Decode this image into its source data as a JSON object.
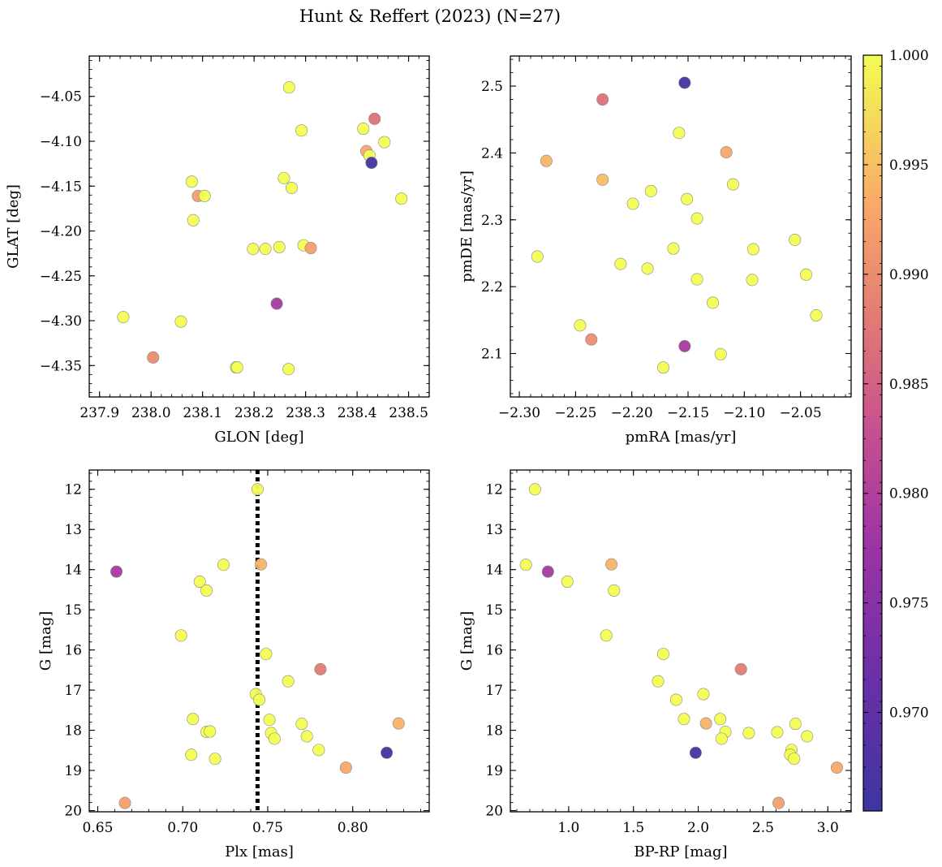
{
  "figure": {
    "title": "Hunt & Reffert (2023) (N=27)"
  },
  "colorbar": {
    "range": [
      0.9655,
      1.0
    ],
    "ticks": [
      0.97,
      0.975,
      0.98,
      0.985,
      0.99,
      0.995,
      1.0
    ],
    "tick_labels": [
      "0.970",
      "0.975",
      "0.980",
      "0.985",
      "0.990",
      "0.995",
      "1.000"
    ],
    "colormap": "plasma"
  },
  "vline": {
    "x": 0.744,
    "panel": "plx-g",
    "style": "dotted",
    "color": "#000000"
  },
  "chart_data": [
    {
      "id": "glon-glat",
      "type": "scatter",
      "xlabel": "GLON [deg]",
      "ylabel": "GLAT [deg]",
      "xlim": [
        237.88,
        238.54
      ],
      "ylim": [
        -4.385,
        -4.005
      ],
      "invert_y": false,
      "xticks": [
        237.9,
        238.0,
        238.1,
        238.2,
        238.3,
        238.4,
        238.5
      ],
      "xtick_labels": [
        "237.9",
        "238.0",
        "238.1",
        "238.2",
        "238.3",
        "238.4",
        "238.5"
      ],
      "yticks": [
        -4.05,
        -4.1,
        -4.15,
        -4.2,
        -4.25,
        -4.3,
        -4.35
      ],
      "ytick_labels": [
        "−4.05",
        "−4.10",
        "−4.15",
        "−4.20",
        "−4.25",
        "−4.30",
        "−4.35"
      ],
      "points": [
        {
          "x": 238.268,
          "y": -4.04,
          "c": 1.0
        },
        {
          "x": 238.434,
          "y": -4.075,
          "c": 0.987
        },
        {
          "x": 238.412,
          "y": -4.086,
          "c": 1.0
        },
        {
          "x": 238.292,
          "y": -4.088,
          "c": 1.0
        },
        {
          "x": 238.453,
          "y": -4.101,
          "c": 1.0
        },
        {
          "x": 238.418,
          "y": -4.111,
          "c": 0.993
        },
        {
          "x": 238.424,
          "y": -4.116,
          "c": 1.0
        },
        {
          "x": 238.428,
          "y": -4.124,
          "c": 0.966
        },
        {
          "x": 238.258,
          "y": -4.141,
          "c": 1.0
        },
        {
          "x": 238.079,
          "y": -4.145,
          "c": 1.0
        },
        {
          "x": 238.273,
          "y": -4.152,
          "c": 1.0
        },
        {
          "x": 238.091,
          "y": -4.161,
          "c": 0.992
        },
        {
          "x": 238.104,
          "y": -4.161,
          "c": 1.0
        },
        {
          "x": 238.486,
          "y": -4.164,
          "c": 1.0
        },
        {
          "x": 238.082,
          "y": -4.188,
          "c": 1.0
        },
        {
          "x": 238.198,
          "y": -4.22,
          "c": 1.0
        },
        {
          "x": 238.222,
          "y": -4.22,
          "c": 1.0
        },
        {
          "x": 238.249,
          "y": -4.218,
          "c": 1.0
        },
        {
          "x": 238.296,
          "y": -4.216,
          "c": 1.0
        },
        {
          "x": 238.31,
          "y": -4.219,
          "c": 0.992
        },
        {
          "x": 238.244,
          "y": -4.281,
          "c": 0.979
        },
        {
          "x": 237.946,
          "y": -4.296,
          "c": 1.0
        },
        {
          "x": 238.058,
          "y": -4.301,
          "c": 1.0
        },
        {
          "x": 238.004,
          "y": -4.341,
          "c": 0.99
        },
        {
          "x": 238.165,
          "y": -4.352,
          "c": 1.0
        },
        {
          "x": 238.167,
          "y": -4.352,
          "c": 1.0
        },
        {
          "x": 238.267,
          "y": -4.354,
          "c": 1.0
        }
      ]
    },
    {
      "id": "pmra-pmde",
      "type": "scatter",
      "xlabel": "pmRA [mas/yr]",
      "ylabel": "pmDE [mas/yr]",
      "xlim": [
        -2.308,
        -2.005
      ],
      "ylim": [
        2.035,
        2.545
      ],
      "invert_y": false,
      "xticks": [
        -2.3,
        -2.25,
        -2.2,
        -2.15,
        -2.1,
        -2.05
      ],
      "xtick_labels": [
        "−2.30",
        "−2.25",
        "−2.20",
        "−2.15",
        "−2.10",
        "−2.05"
      ],
      "yticks": [
        2.1,
        2.2,
        2.3,
        2.4,
        2.5
      ],
      "ytick_labels": [
        "2.1",
        "2.2",
        "2.3",
        "2.4",
        "2.5"
      ],
      "points": [
        {
          "x": -2.153,
          "y": 2.505,
          "c": 0.966
        },
        {
          "x": -2.226,
          "y": 2.48,
          "c": 0.987
        },
        {
          "x": -2.158,
          "y": 2.43,
          "c": 1.0
        },
        {
          "x": -2.116,
          "y": 2.401,
          "c": 0.993
        },
        {
          "x": -2.276,
          "y": 2.388,
          "c": 0.994
        },
        {
          "x": -2.226,
          "y": 2.36,
          "c": 0.995
        },
        {
          "x": -2.11,
          "y": 2.353,
          "c": 1.0
        },
        {
          "x": -2.183,
          "y": 2.343,
          "c": 1.0
        },
        {
          "x": -2.151,
          "y": 2.331,
          "c": 1.0
        },
        {
          "x": -2.199,
          "y": 2.324,
          "c": 1.0
        },
        {
          "x": -2.142,
          "y": 2.302,
          "c": 1.0
        },
        {
          "x": -2.055,
          "y": 2.27,
          "c": 1.0
        },
        {
          "x": -2.163,
          "y": 2.257,
          "c": 1.0
        },
        {
          "x": -2.092,
          "y": 2.256,
          "c": 1.0
        },
        {
          "x": -2.284,
          "y": 2.245,
          "c": 1.0
        },
        {
          "x": -2.21,
          "y": 2.234,
          "c": 1.0
        },
        {
          "x": -2.186,
          "y": 2.227,
          "c": 1.0
        },
        {
          "x": -2.045,
          "y": 2.218,
          "c": 1.0
        },
        {
          "x": -2.142,
          "y": 2.211,
          "c": 1.0
        },
        {
          "x": -2.093,
          "y": 2.21,
          "c": 1.0
        },
        {
          "x": -2.128,
          "y": 2.176,
          "c": 1.0
        },
        {
          "x": -2.036,
          "y": 2.157,
          "c": 1.0
        },
        {
          "x": -2.246,
          "y": 2.142,
          "c": 1.0
        },
        {
          "x": -2.236,
          "y": 2.121,
          "c": 0.99
        },
        {
          "x": -2.153,
          "y": 2.111,
          "c": 0.979
        },
        {
          "x": -2.121,
          "y": 2.099,
          "c": 1.0
        },
        {
          "x": -2.172,
          "y": 2.079,
          "c": 1.0
        }
      ]
    },
    {
      "id": "plx-g",
      "type": "scatter",
      "xlabel": "Plx [mas]",
      "ylabel": "G [mag]",
      "xlim": [
        0.645,
        0.845
      ],
      "ylim": [
        20.03,
        11.52
      ],
      "invert_y": true,
      "xticks": [
        0.65,
        0.7,
        0.75,
        0.8
      ],
      "xtick_labels": [
        "0.65",
        "0.70",
        "0.75",
        "0.80"
      ],
      "yticks": [
        12,
        13,
        14,
        15,
        16,
        17,
        18,
        19,
        20
      ],
      "ytick_labels": [
        "12",
        "13",
        "14",
        "15",
        "16",
        "17",
        "18",
        "19",
        "20"
      ],
      "points": [
        {
          "x": 0.744,
          "y": 12.0,
          "c": 1.0
        },
        {
          "x": 0.724,
          "y": 13.88,
          "c": 1.0
        },
        {
          "x": 0.746,
          "y": 13.87,
          "c": 0.994
        },
        {
          "x": 0.661,
          "y": 14.05,
          "c": 0.979
        },
        {
          "x": 0.71,
          "y": 14.3,
          "c": 1.0
        },
        {
          "x": 0.714,
          "y": 14.52,
          "c": 1.0
        },
        {
          "x": 0.699,
          "y": 15.64,
          "c": 1.0
        },
        {
          "x": 0.749,
          "y": 16.1,
          "c": 1.0
        },
        {
          "x": 0.781,
          "y": 16.48,
          "c": 0.988
        },
        {
          "x": 0.762,
          "y": 16.78,
          "c": 1.0
        },
        {
          "x": 0.743,
          "y": 17.1,
          "c": 1.0
        },
        {
          "x": 0.745,
          "y": 17.24,
          "c": 1.0
        },
        {
          "x": 0.706,
          "y": 17.72,
          "c": 1.0
        },
        {
          "x": 0.751,
          "y": 17.74,
          "c": 1.0
        },
        {
          "x": 0.77,
          "y": 17.84,
          "c": 1.0
        },
        {
          "x": 0.827,
          "y": 17.83,
          "c": 0.994
        },
        {
          "x": 0.714,
          "y": 18.04,
          "c": 1.0
        },
        {
          "x": 0.716,
          "y": 18.03,
          "c": 1.0
        },
        {
          "x": 0.752,
          "y": 18.07,
          "c": 1.0
        },
        {
          "x": 0.754,
          "y": 18.21,
          "c": 1.0
        },
        {
          "x": 0.773,
          "y": 18.15,
          "c": 1.0
        },
        {
          "x": 0.78,
          "y": 18.49,
          "c": 1.0
        },
        {
          "x": 0.82,
          "y": 18.56,
          "c": 0.966
        },
        {
          "x": 0.705,
          "y": 18.61,
          "c": 1.0
        },
        {
          "x": 0.719,
          "y": 18.71,
          "c": 1.0
        },
        {
          "x": 0.796,
          "y": 18.93,
          "c": 0.993
        },
        {
          "x": 0.666,
          "y": 19.81,
          "c": 0.992
        }
      ]
    },
    {
      "id": "bprp-g",
      "type": "scatter",
      "xlabel": "BP-RP [mag]",
      "ylabel": "G [mag]",
      "xlim": [
        0.55,
        3.18
      ],
      "ylim": [
        20.03,
        11.52
      ],
      "invert_y": true,
      "xticks": [
        1.0,
        1.5,
        2.0,
        2.5,
        3.0
      ],
      "xtick_labels": [
        "1.0",
        "1.5",
        "2.0",
        "2.5",
        "3.0"
      ],
      "yticks": [
        12,
        13,
        14,
        15,
        16,
        17,
        18,
        19,
        20
      ],
      "ytick_labels": [
        "12",
        "13",
        "14",
        "15",
        "16",
        "17",
        "18",
        "19",
        "20"
      ],
      "points": [
        {
          "x": 0.74,
          "y": 12.0,
          "c": 1.0
        },
        {
          "x": 0.67,
          "y": 13.88,
          "c": 1.0
        },
        {
          "x": 1.33,
          "y": 13.87,
          "c": 0.994
        },
        {
          "x": 0.84,
          "y": 14.05,
          "c": 0.979
        },
        {
          "x": 0.99,
          "y": 14.3,
          "c": 1.0
        },
        {
          "x": 1.35,
          "y": 14.52,
          "c": 1.0
        },
        {
          "x": 1.29,
          "y": 15.64,
          "c": 1.0
        },
        {
          "x": 1.73,
          "y": 16.1,
          "c": 1.0
        },
        {
          "x": 2.33,
          "y": 16.48,
          "c": 0.988
        },
        {
          "x": 1.69,
          "y": 16.78,
          "c": 1.0
        },
        {
          "x": 2.04,
          "y": 17.1,
          "c": 1.0
        },
        {
          "x": 1.83,
          "y": 17.24,
          "c": 1.0
        },
        {
          "x": 1.89,
          "y": 17.72,
          "c": 1.0
        },
        {
          "x": 2.17,
          "y": 17.72,
          "c": 1.0
        },
        {
          "x": 2.06,
          "y": 17.83,
          "c": 0.994
        },
        {
          "x": 2.75,
          "y": 17.84,
          "c": 1.0
        },
        {
          "x": 2.21,
          "y": 18.04,
          "c": 1.0
        },
        {
          "x": 2.39,
          "y": 18.07,
          "c": 1.0
        },
        {
          "x": 2.61,
          "y": 18.05,
          "c": 1.0
        },
        {
          "x": 2.84,
          "y": 18.15,
          "c": 1.0
        },
        {
          "x": 2.18,
          "y": 18.21,
          "c": 1.0
        },
        {
          "x": 2.72,
          "y": 18.49,
          "c": 1.0
        },
        {
          "x": 1.98,
          "y": 18.56,
          "c": 0.966
        },
        {
          "x": 2.71,
          "y": 18.61,
          "c": 1.0
        },
        {
          "x": 2.74,
          "y": 18.71,
          "c": 1.0
        },
        {
          "x": 3.07,
          "y": 18.93,
          "c": 0.993
        },
        {
          "x": 2.62,
          "y": 19.81,
          "c": 0.992
        }
      ]
    }
  ]
}
